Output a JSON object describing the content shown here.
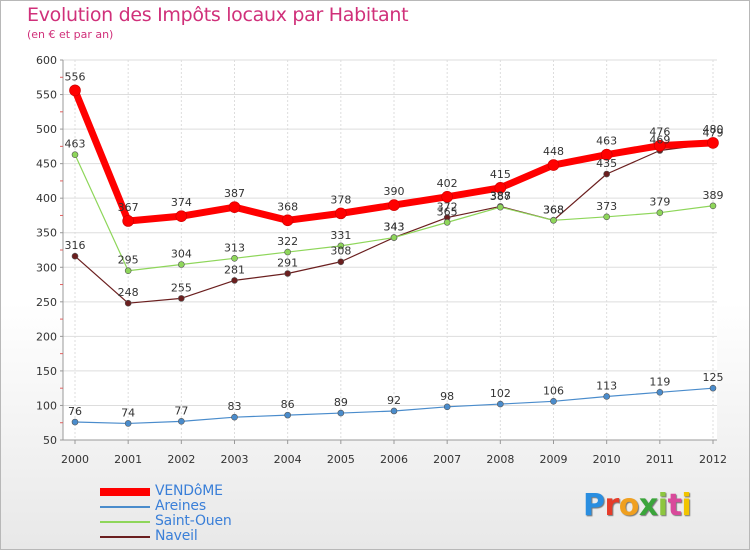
{
  "title": "Evolution des Impôts locaux par Habitant",
  "subtitle": "(en € et par an)",
  "logo": {
    "letters": [
      "P",
      "r",
      "o",
      "x",
      "i",
      "t",
      "i"
    ],
    "colors": [
      "#2a8ee0",
      "#e53c2a",
      "#f0a020",
      "#3aa53a",
      "#8dc63f",
      "#d94a9b",
      "#f2c400"
    ]
  },
  "chart_data": {
    "type": "line",
    "title": "Evolution des Impôts locaux par Habitant",
    "subtitle": "(en € et par an)",
    "xlabel": "",
    "ylabel": "",
    "x": [
      "2000",
      "2001",
      "2002",
      "2003",
      "2004",
      "2005",
      "2006",
      "2007",
      "2008",
      "2009",
      "2010",
      "2011",
      "2012"
    ],
    "yticks": [
      50,
      100,
      150,
      200,
      250,
      300,
      350,
      400,
      450,
      500,
      550,
      600
    ],
    "ylim": [
      50,
      600
    ],
    "grid": true,
    "legend_position": "bottom-left",
    "series": [
      {
        "name": "Naveil",
        "color": "#6b1f1f",
        "width": 1.2,
        "values": [
          316,
          248,
          255,
          281,
          291,
          308,
          343,
          372,
          388,
          368,
          435,
          469,
          479
        ]
      },
      {
        "name": "Saint-Ouen",
        "color": "#8ed65a",
        "width": 1.2,
        "values": [
          463,
          295,
          304,
          313,
          322,
          331,
          343,
          365,
          387,
          368,
          373,
          379,
          389
        ]
      },
      {
        "name": "Areines",
        "color": "#4a8ccc",
        "width": 1.2,
        "values": [
          76,
          74,
          77,
          83,
          86,
          89,
          92,
          98,
          102,
          106,
          113,
          119,
          125
        ]
      },
      {
        "name": "VENDôME",
        "color": "#ff0000",
        "width": 7,
        "values": [
          556,
          367,
          374,
          387,
          368,
          378,
          390,
          402,
          415,
          448,
          463,
          476,
          480
        ]
      }
    ]
  }
}
